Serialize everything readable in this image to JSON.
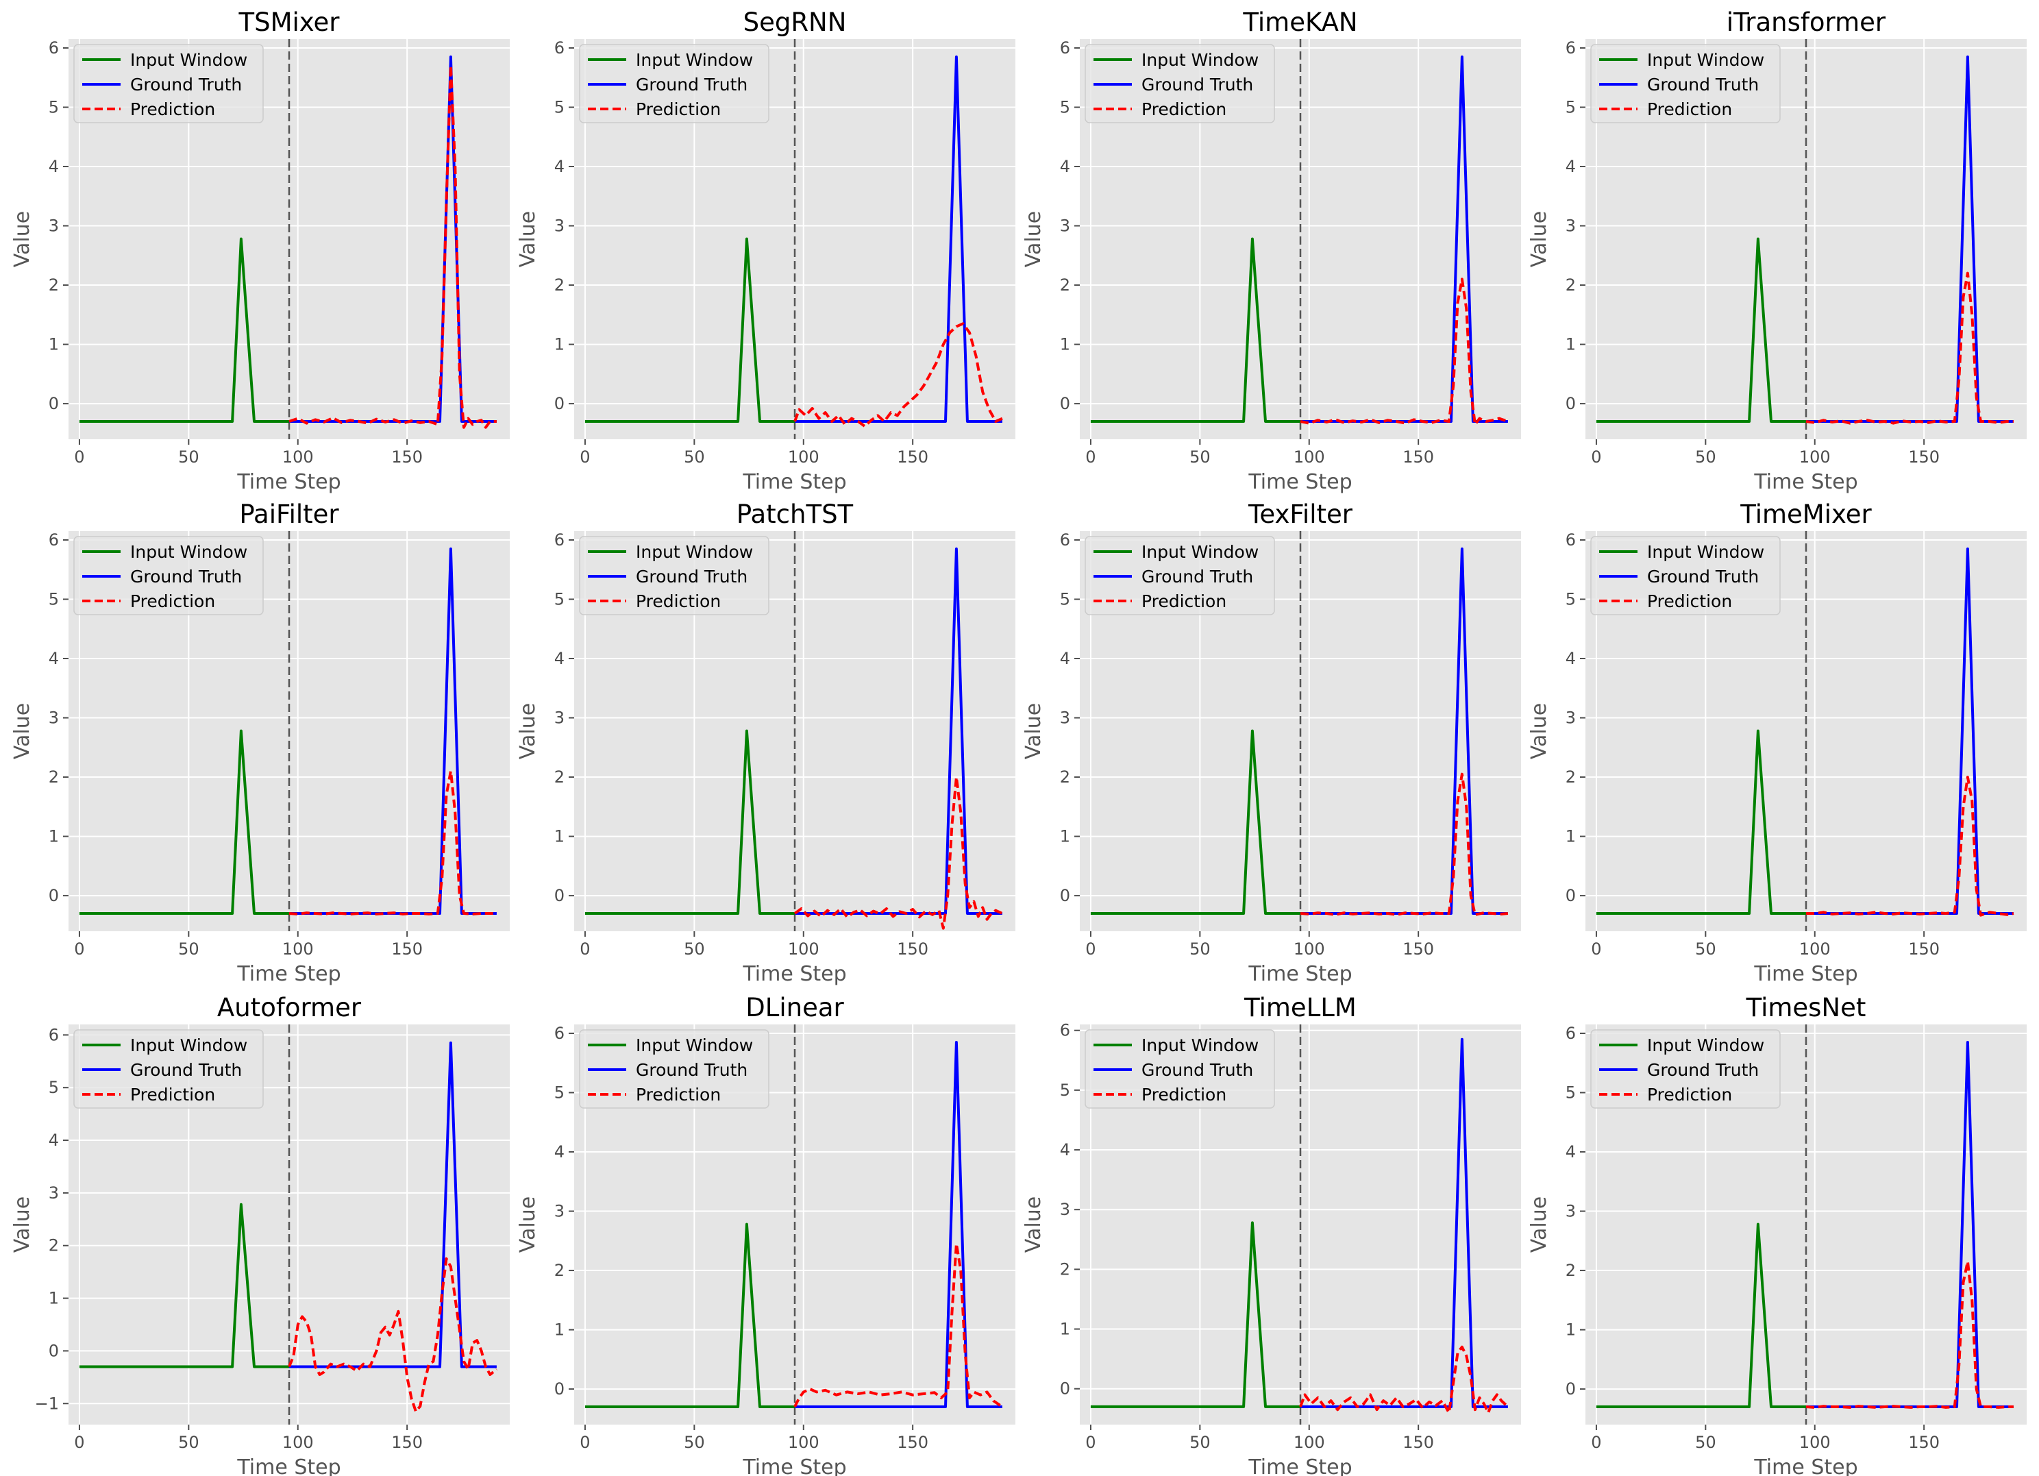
{
  "chart_data": {
    "type": "line",
    "layout": "3x4 grid",
    "shared": {
      "xlabel": "Time Step",
      "ylabel": "Value",
      "xlim": [
        -5,
        197
      ],
      "xticks": [
        0,
        50,
        100,
        150
      ],
      "divider_x": 96,
      "legend_position": "upper-left",
      "legend": [
        "Input Window",
        "Ground Truth",
        "Prediction"
      ],
      "colors": {
        "input": "#008000",
        "truth": "#0000ff",
        "prediction": "#ff0000",
        "divider": "#555555",
        "background": "#e5e5e5",
        "grid": "#ffffff"
      },
      "input_window": {
        "x": [
          0,
          70,
          74,
          80,
          96
        ],
        "y": [
          -0.3,
          -0.3,
          2.78,
          -0.3,
          -0.3
        ]
      },
      "ground_truth": {
        "x": [
          96,
          165,
          170,
          175,
          191
        ],
        "y": [
          -0.3,
          -0.3,
          5.85,
          -0.3,
          -0.3
        ]
      }
    },
    "panels": [
      {
        "title": "TSMixer",
        "ylim": [
          -0.6,
          6.15
        ],
        "yticks": [
          0,
          1,
          2,
          3,
          4,
          5,
          6
        ],
        "prediction": {
          "x": [
            96,
            100,
            104,
            108,
            112,
            116,
            120,
            124,
            128,
            132,
            136,
            140,
            144,
            148,
            152,
            156,
            160,
            164,
            166,
            168,
            170,
            172,
            174,
            176,
            178,
            180,
            182,
            184,
            186,
            188,
            191
          ],
          "y": [
            -0.3,
            -0.25,
            -0.33,
            -0.27,
            -0.31,
            -0.24,
            -0.32,
            -0.28,
            -0.3,
            -0.33,
            -0.26,
            -0.31,
            -0.27,
            -0.33,
            -0.29,
            -0.32,
            -0.3,
            -0.35,
            0.8,
            3.4,
            5.7,
            4.0,
            0.5,
            -0.4,
            -0.25,
            -0.35,
            -0.3,
            -0.28,
            -0.4,
            -0.3,
            -0.3
          ]
        }
      },
      {
        "title": "SegRNN",
        "ylim": [
          -0.6,
          6.15
        ],
        "yticks": [
          0,
          1,
          2,
          3,
          4,
          5,
          6
        ],
        "prediction": {
          "x": [
            96,
            98,
            101,
            104,
            107,
            110,
            113,
            116,
            119,
            122,
            125,
            128,
            131,
            134,
            137,
            140,
            143,
            146,
            149,
            152,
            155,
            158,
            161,
            164,
            167,
            170,
            173,
            176,
            179,
            182,
            185,
            188,
            191
          ],
          "y": [
            -0.3,
            -0.1,
            -0.2,
            -0.08,
            -0.25,
            -0.15,
            -0.3,
            -0.2,
            -0.35,
            -0.25,
            -0.3,
            -0.38,
            -0.28,
            -0.2,
            -0.3,
            -0.15,
            -0.2,
            -0.05,
            0.05,
            0.15,
            0.3,
            0.5,
            0.7,
            1.0,
            1.2,
            1.3,
            1.35,
            1.2,
            0.8,
            0.2,
            -0.1,
            -0.3,
            -0.25
          ]
        }
      },
      {
        "title": "TimeKAN",
        "ylim": [
          -0.6,
          6.15
        ],
        "yticks": [
          0,
          1,
          2,
          3,
          4,
          5,
          6
        ],
        "prediction": {
          "x": [
            96,
            100,
            104,
            108,
            112,
            116,
            120,
            124,
            128,
            132,
            136,
            140,
            144,
            148,
            152,
            156,
            160,
            164,
            166,
            168,
            170,
            172,
            174,
            176,
            178,
            181,
            184,
            187,
            191
          ],
          "y": [
            -0.3,
            -0.33,
            -0.28,
            -0.31,
            -0.27,
            -0.32,
            -0.29,
            -0.31,
            -0.27,
            -0.32,
            -0.28,
            -0.3,
            -0.33,
            -0.27,
            -0.3,
            -0.32,
            -0.28,
            -0.3,
            0.3,
            1.7,
            2.1,
            1.6,
            0.2,
            -0.35,
            -0.25,
            -0.3,
            -0.28,
            -0.25,
            -0.3
          ]
        }
      },
      {
        "title": "iTransformer",
        "ylim": [
          -0.6,
          6.15
        ],
        "yticks": [
          0,
          1,
          2,
          3,
          4,
          5,
          6
        ],
        "prediction": {
          "x": [
            96,
            100,
            104,
            108,
            112,
            116,
            120,
            124,
            128,
            132,
            136,
            140,
            144,
            148,
            152,
            156,
            160,
            164,
            166,
            168,
            170,
            172,
            174,
            176,
            180,
            184,
            188,
            191
          ],
          "y": [
            -0.3,
            -0.32,
            -0.28,
            -0.31,
            -0.29,
            -0.33,
            -0.3,
            -0.28,
            -0.31,
            -0.3,
            -0.33,
            -0.29,
            -0.31,
            -0.3,
            -0.32,
            -0.29,
            -0.31,
            -0.3,
            0.4,
            1.8,
            2.2,
            1.5,
            0.1,
            -0.3,
            -0.3,
            -0.32,
            -0.3,
            -0.3
          ]
        }
      },
      {
        "title": "PaiFilter",
        "ylim": [
          -0.6,
          6.15
        ],
        "yticks": [
          0,
          1,
          2,
          3,
          4,
          5,
          6
        ],
        "prediction": {
          "x": [
            96,
            100,
            104,
            108,
            112,
            116,
            120,
            124,
            128,
            132,
            136,
            140,
            144,
            148,
            152,
            156,
            160,
            164,
            166,
            168,
            170,
            172,
            174,
            176,
            180,
            184,
            188,
            191
          ],
          "y": [
            -0.3,
            -0.31,
            -0.29,
            -0.3,
            -0.31,
            -0.29,
            -0.3,
            -0.31,
            -0.3,
            -0.29,
            -0.31,
            -0.3,
            -0.29,
            -0.31,
            -0.3,
            -0.3,
            -0.31,
            -0.3,
            0.3,
            1.7,
            2.1,
            1.4,
            0.0,
            -0.3,
            -0.31,
            -0.3,
            -0.3,
            -0.3
          ]
        }
      },
      {
        "title": "PatchTST",
        "ylim": [
          -0.6,
          6.15
        ],
        "yticks": [
          0,
          1,
          2,
          3,
          4,
          5,
          6
        ],
        "prediction": {
          "x": [
            96,
            99,
            102,
            105,
            108,
            111,
            114,
            117,
            120,
            123,
            126,
            129,
            132,
            135,
            138,
            141,
            144,
            147,
            150,
            153,
            156,
            159,
            162,
            164,
            166,
            168,
            170,
            172,
            174,
            176,
            178,
            180,
            182,
            184,
            186,
            188,
            191
          ],
          "y": [
            -0.3,
            -0.22,
            -0.34,
            -0.26,
            -0.35,
            -0.25,
            -0.32,
            -0.22,
            -0.36,
            -0.28,
            -0.24,
            -0.34,
            -0.26,
            -0.31,
            -0.22,
            -0.35,
            -0.27,
            -0.3,
            -0.23,
            -0.36,
            -0.26,
            -0.32,
            -0.25,
            -0.55,
            0.0,
            1.2,
            2.0,
            1.4,
            0.2,
            -0.2,
            -0.1,
            -0.35,
            -0.2,
            -0.4,
            -0.3,
            -0.25,
            -0.3
          ]
        }
      },
      {
        "title": "TexFilter",
        "ylim": [
          -0.6,
          6.15
        ],
        "yticks": [
          0,
          1,
          2,
          3,
          4,
          5,
          6
        ],
        "prediction": {
          "x": [
            96,
            100,
            104,
            108,
            112,
            116,
            120,
            124,
            128,
            132,
            136,
            140,
            144,
            148,
            152,
            156,
            160,
            164,
            166,
            168,
            170,
            172,
            174,
            176,
            180,
            184,
            188,
            191
          ],
          "y": [
            -0.3,
            -0.31,
            -0.29,
            -0.3,
            -0.32,
            -0.29,
            -0.31,
            -0.3,
            -0.29,
            -0.31,
            -0.3,
            -0.32,
            -0.29,
            -0.3,
            -0.31,
            -0.29,
            -0.3,
            -0.3,
            0.3,
            1.6,
            2.05,
            1.5,
            0.0,
            -0.32,
            -0.29,
            -0.3,
            -0.31,
            -0.3
          ]
        }
      },
      {
        "title": "TimeMixer",
        "ylim": [
          -0.6,
          6.15
        ],
        "yticks": [
          0,
          1,
          2,
          3,
          4,
          5,
          6
        ],
        "prediction": {
          "x": [
            96,
            100,
            104,
            108,
            112,
            116,
            120,
            124,
            128,
            132,
            136,
            140,
            144,
            148,
            152,
            156,
            160,
            164,
            166,
            168,
            170,
            172,
            174,
            176,
            180,
            184,
            188,
            191
          ],
          "y": [
            -0.3,
            -0.3,
            -0.28,
            -0.31,
            -0.3,
            -0.29,
            -0.31,
            -0.3,
            -0.28,
            -0.3,
            -0.31,
            -0.29,
            -0.3,
            -0.31,
            -0.3,
            -0.29,
            -0.3,
            -0.28,
            0.3,
            1.5,
            2.0,
            1.6,
            0.1,
            -0.33,
            -0.28,
            -0.3,
            -0.32,
            -0.3
          ]
        }
      },
      {
        "title": "Autoformer",
        "ylim": [
          -1.4,
          6.2
        ],
        "yticks": [
          -1,
          0,
          1,
          2,
          3,
          4,
          5,
          6
        ],
        "prediction": {
          "x": [
            96,
            98,
            100,
            102,
            104,
            106,
            108,
            110,
            112,
            115,
            118,
            121,
            124,
            127,
            130,
            133,
            136,
            138,
            140,
            142,
            144,
            146,
            148,
            150,
            152,
            154,
            156,
            158,
            160,
            162,
            164,
            166,
            168,
            170,
            172,
            174,
            176,
            178,
            180,
            182,
            184,
            186,
            188,
            191
          ],
          "y": [
            -0.3,
            -0.1,
            0.5,
            0.65,
            0.55,
            0.3,
            -0.3,
            -0.45,
            -0.4,
            -0.25,
            -0.3,
            -0.25,
            -0.3,
            -0.38,
            -0.25,
            -0.3,
            0.0,
            0.35,
            0.45,
            0.3,
            0.5,
            0.75,
            0.2,
            -0.5,
            -0.9,
            -1.15,
            -1.05,
            -0.6,
            -0.25,
            -0.2,
            0.3,
            1.1,
            1.75,
            1.6,
            1.0,
            0.4,
            -0.2,
            -0.35,
            0.15,
            0.2,
            0.0,
            -0.3,
            -0.45,
            -0.35
          ]
        }
      },
      {
        "title": "DLinear",
        "ylim": [
          -0.6,
          6.15
        ],
        "yticks": [
          0,
          1,
          2,
          3,
          4,
          5,
          6
        ],
        "prediction": {
          "x": [
            96,
            98,
            100,
            103,
            106,
            110,
            115,
            120,
            125,
            130,
            135,
            140,
            145,
            150,
            155,
            160,
            163,
            166,
            168,
            170,
            172,
            174,
            176,
            178,
            181,
            184,
            187,
            191
          ],
          "y": [
            -0.3,
            -0.15,
            -0.05,
            0.0,
            -0.05,
            -0.02,
            -0.1,
            -0.05,
            -0.08,
            -0.05,
            -0.1,
            -0.08,
            -0.05,
            -0.1,
            -0.08,
            -0.06,
            -0.15,
            -0.05,
            1.3,
            2.45,
            2.0,
            0.6,
            -0.15,
            -0.05,
            -0.1,
            -0.05,
            -0.2,
            -0.3
          ]
        }
      },
      {
        "title": "TimeLLM",
        "ylim": [
          -0.6,
          6.1
        ],
        "yticks": [
          0,
          1,
          2,
          3,
          4,
          5,
          6
        ],
        "prediction": {
          "x": [
            96,
            98,
            101,
            104,
            107,
            110,
            113,
            116,
            119,
            122,
            125,
            128,
            131,
            134,
            137,
            140,
            143,
            146,
            149,
            152,
            155,
            158,
            161,
            164,
            166,
            168,
            170,
            172,
            174,
            176,
            178,
            180,
            182,
            184,
            186,
            188,
            191
          ],
          "y": [
            -0.3,
            -0.1,
            -0.25,
            -0.15,
            -0.3,
            -0.2,
            -0.35,
            -0.22,
            -0.15,
            -0.3,
            -0.25,
            -0.1,
            -0.35,
            -0.2,
            -0.28,
            -0.15,
            -0.3,
            -0.25,
            -0.18,
            -0.32,
            -0.22,
            -0.28,
            -0.2,
            -0.4,
            0.1,
            0.6,
            0.7,
            0.55,
            0.2,
            -0.35,
            -0.15,
            -0.25,
            -0.4,
            -0.2,
            -0.1,
            -0.2,
            -0.3
          ]
        }
      },
      {
        "title": "TimesNet",
        "ylim": [
          -0.6,
          6.15
        ],
        "yticks": [
          0,
          1,
          2,
          3,
          4,
          5,
          6
        ],
        "prediction": {
          "x": [
            96,
            100,
            104,
            108,
            112,
            116,
            120,
            124,
            128,
            132,
            136,
            140,
            144,
            148,
            152,
            156,
            160,
            164,
            166,
            168,
            170,
            172,
            174,
            176,
            180,
            184,
            188,
            191
          ],
          "y": [
            -0.3,
            -0.31,
            -0.29,
            -0.3,
            -0.3,
            -0.31,
            -0.29,
            -0.3,
            -0.31,
            -0.3,
            -0.29,
            -0.3,
            -0.31,
            -0.3,
            -0.3,
            -0.29,
            -0.31,
            -0.3,
            0.4,
            1.8,
            2.15,
            1.5,
            0.0,
            -0.3,
            -0.3,
            -0.31,
            -0.3,
            -0.3
          ]
        }
      }
    ]
  }
}
